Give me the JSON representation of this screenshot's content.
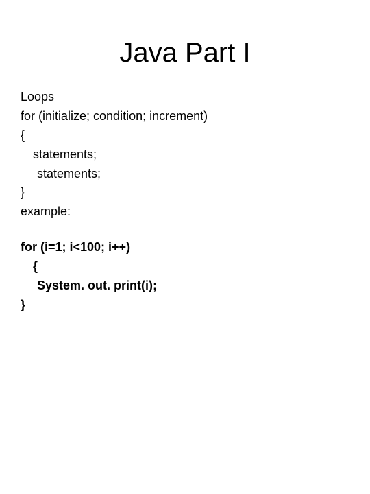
{
  "title": "Java Part I",
  "lines": {
    "l1": "Loops",
    "l2": "for (initialize;  condition;  increment)",
    "l3": "{",
    "l4": "statements;",
    "l5": "statements;",
    "l6": "}",
    "l7": "example:",
    "l8": "for (i=1; i<100; i++)",
    "l9": "{",
    "l10": "System. out. print(i);",
    "l11": "}"
  },
  "style": {
    "background_color": "#ffffff",
    "text_color": "#000000",
    "title_fontsize": 40,
    "body_fontsize": 18,
    "font_family": "Arial, Helvetica, sans-serif"
  }
}
